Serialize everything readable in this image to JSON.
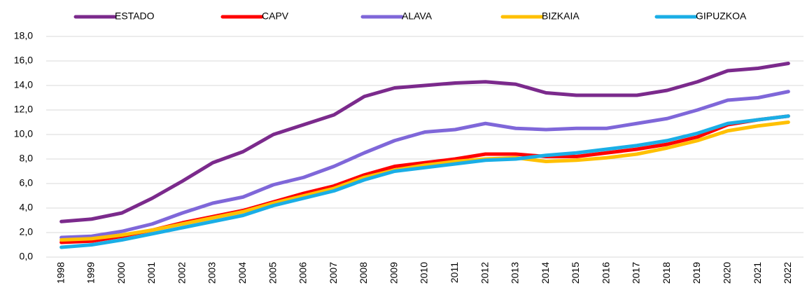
{
  "chart_data": {
    "type": "line",
    "categories": [
      "1998",
      "1999",
      "2000",
      "2001",
      "2002",
      "2003",
      "2004",
      "2005",
      "2006",
      "2007",
      "2008",
      "2009",
      "2010",
      "2011",
      "2012",
      "2013",
      "2014",
      "2015",
      "2016",
      "2017",
      "2018",
      "2019",
      "2020",
      "2021",
      "2022"
    ],
    "series": [
      {
        "name": "ESTADO",
        "color": "#7b2a8c",
        "values": [
          2.9,
          3.1,
          3.6,
          4.8,
          6.2,
          7.7,
          8.6,
          10.0,
          10.8,
          11.6,
          13.1,
          13.8,
          14.0,
          14.2,
          14.3,
          14.1,
          13.4,
          13.2,
          13.2,
          13.2,
          13.6,
          14.3,
          15.2,
          15.4,
          15.8
        ]
      },
      {
        "name": "CAPV",
        "color": "#ff0000",
        "values": [
          1.2,
          1.3,
          1.7,
          2.2,
          2.8,
          3.3,
          3.8,
          4.5,
          5.2,
          5.8,
          6.7,
          7.4,
          7.7,
          8.0,
          8.4,
          8.4,
          8.2,
          8.2,
          8.5,
          8.8,
          9.2,
          9.8,
          10.8,
          11.2,
          11.5
        ]
      },
      {
        "name": "ALAVA",
        "color": "#7f67d9",
        "values": [
          1.6,
          1.7,
          2.1,
          2.7,
          3.6,
          4.4,
          4.9,
          5.9,
          6.5,
          7.4,
          8.5,
          9.5,
          10.2,
          10.4,
          10.9,
          10.5,
          10.4,
          10.5,
          10.5,
          10.9,
          11.3,
          12.0,
          12.8,
          13.0,
          13.5
        ]
      },
      {
        "name": "BIZKAIA",
        "color": "#ffc000",
        "values": [
          1.4,
          1.5,
          1.8,
          2.2,
          2.7,
          3.2,
          3.7,
          4.4,
          5.0,
          5.6,
          6.5,
          7.1,
          7.5,
          7.8,
          8.0,
          8.1,
          7.8,
          7.9,
          8.1,
          8.4,
          8.9,
          9.5,
          10.3,
          10.7,
          11.0
        ]
      },
      {
        "name": "GIPUZKOA",
        "color": "#1aaee6",
        "values": [
          0.8,
          1.0,
          1.4,
          1.9,
          2.4,
          2.9,
          3.4,
          4.2,
          4.8,
          5.4,
          6.3,
          7.0,
          7.3,
          7.6,
          7.9,
          8.0,
          8.3,
          8.5,
          8.8,
          9.1,
          9.5,
          10.1,
          10.9,
          11.2,
          11.5
        ]
      }
    ],
    "ylim": [
      0,
      18
    ],
    "yticks": [
      {
        "value": 0,
        "label": "0,0"
      },
      {
        "value": 2,
        "label": "2,0"
      },
      {
        "value": 4,
        "label": "4,0"
      },
      {
        "value": 6,
        "label": "6,0"
      },
      {
        "value": 8,
        "label": "8,0"
      },
      {
        "value": 10,
        "label": "10,0"
      },
      {
        "value": 12,
        "label": "12,0"
      },
      {
        "value": 14,
        "label": "14,0"
      },
      {
        "value": 16,
        "label": "16,0"
      },
      {
        "value": 18,
        "label": "18,0"
      }
    ],
    "grid": true,
    "legend": "top"
  }
}
